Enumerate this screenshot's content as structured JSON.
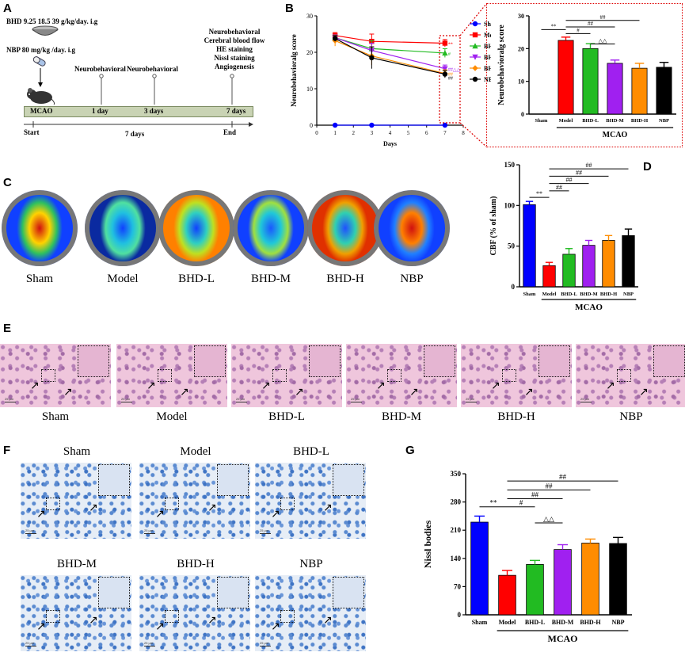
{
  "panels": {
    "a": "A",
    "b": "B",
    "c": "C",
    "d": "D",
    "e": "E",
    "f": "F",
    "g": "G"
  },
  "panel_a": {
    "dose_bhd": "BHD 9.25 18.5 39 g/kg/day. i.g",
    "dose_nbp": "NBP 80 mg/kg /day. i.g",
    "mcao": "MCAO",
    "ticks": [
      "1 day",
      "3 days",
      "7 days"
    ],
    "start": "Start",
    "end": "End",
    "duration": "7 days",
    "above_day1": "Neurobehavioral",
    "above_day3": "Neurobehavioral",
    "above_day7": [
      "Neurobehavioral",
      "Cerebral blood flow",
      "HE staining",
      "Nissl staining",
      "Angiogenesis"
    ]
  },
  "colors": {
    "sham": "#0000ff",
    "model": "#ff0000",
    "bhd_l": "#22bb22",
    "bhd_m": "#a020f0",
    "bhd_h": "#ff8c00",
    "nbp": "#000000",
    "annot": "#dd0000"
  },
  "groups": [
    "Sham",
    "Model",
    "BHD-L",
    "BHD-M",
    "BHD-H",
    "NBP"
  ],
  "mcao_label": "MCAO",
  "panel_c_labels": [
    "Sham",
    "Model",
    "BHD-L",
    "BHD-M",
    "BHD-H",
    "NBP"
  ],
  "panel_e_labels": [
    "Sham",
    "Model",
    "BHD-L",
    "BHD-M",
    "BHD-H",
    "NBP"
  ],
  "panel_f_labels": [
    "Sham",
    "Model",
    "BHD-L",
    "BHD-M",
    "BHD-H",
    "NBP"
  ],
  "scale_text": "25 μm",
  "chart_data": [
    {
      "id": "B-line",
      "type": "line",
      "xlabel": "Days",
      "ylabel": "Neurobehavioralg score",
      "xlim": [
        0,
        8
      ],
      "ylim": [
        0,
        30
      ],
      "xticks": [
        0,
        1,
        2,
        3,
        4,
        5,
        6,
        7,
        8
      ],
      "yticks": [
        0,
        10,
        20,
        30
      ],
      "x": [
        1,
        3,
        7
      ],
      "series": [
        {
          "name": "Sham",
          "values": [
            0,
            0,
            0
          ],
          "err": [
            0,
            0,
            0
          ],
          "marker": "circle",
          "color": "#0000ff"
        },
        {
          "name": "Model",
          "values": [
            24.6,
            23.0,
            22.5
          ],
          "err": [
            0.8,
            2.0,
            1.0
          ],
          "marker": "square",
          "color": "#ff0000"
        },
        {
          "name": "BHD-L",
          "values": [
            24.0,
            21.0,
            19.8
          ],
          "err": [
            0.8,
            2.2,
            1.2
          ],
          "marker": "triangle",
          "color": "#22bb22"
        },
        {
          "name": "BHD-M",
          "values": [
            24.0,
            20.5,
            15.5
          ],
          "err": [
            0.8,
            2.0,
            1.0
          ],
          "marker": "triangle-down",
          "color": "#a020f0"
        },
        {
          "name": "BHD-H",
          "values": [
            23.2,
            19.0,
            14.2
          ],
          "err": [
            1.5,
            2.5,
            1.0
          ],
          "marker": "diamond",
          "color": "#ff8c00"
        },
        {
          "name": "NBP",
          "values": [
            23.8,
            18.5,
            14.0
          ],
          "err": [
            0.8,
            3.0,
            1.0
          ],
          "marker": "circle",
          "color": "#000000"
        }
      ],
      "annotations": [
        "**",
        "#",
        "##△△",
        "##",
        "##"
      ]
    },
    {
      "id": "B-bar",
      "type": "bar",
      "ylabel": "Neurobehavioralg score",
      "ylim": [
        0,
        30
      ],
      "yticks": [
        0,
        10,
        20,
        30
      ],
      "categories": [
        "Sham",
        "Model",
        "BHD-L",
        "BHD-M",
        "BHD-H",
        "NBP"
      ],
      "values": [
        0,
        22.5,
        20.0,
        15.5,
        14.0,
        14.3
      ],
      "err": [
        0,
        1.0,
        1.5,
        1.0,
        1.5,
        1.5
      ],
      "sig": [
        "**",
        "#",
        "##",
        "##",
        "△△"
      ]
    },
    {
      "id": "D",
      "type": "bar",
      "ylabel": "CBF (% of sham)",
      "ylim": [
        0,
        150
      ],
      "yticks": [
        0,
        50,
        100,
        150
      ],
      "categories": [
        "Sham",
        "Model",
        "BHD-L",
        "BHD-M",
        "BHD-H",
        "NBP"
      ],
      "values": [
        101,
        26,
        40,
        51,
        57,
        63
      ],
      "err": [
        4,
        4,
        7,
        6,
        6,
        8
      ],
      "sig": [
        "**",
        "##",
        "##",
        "##",
        "##"
      ]
    },
    {
      "id": "G",
      "type": "bar",
      "ylabel": "Nissl bodies",
      "ylim": [
        0,
        350
      ],
      "yticks": [
        0,
        70,
        140,
        210,
        280,
        350
      ],
      "categories": [
        "Sham",
        "Model",
        "BHD-L",
        "BHD-M",
        "BHD-H",
        "NBP"
      ],
      "values": [
        230,
        98,
        125,
        162,
        178,
        177
      ],
      "err": [
        15,
        12,
        10,
        12,
        10,
        15
      ],
      "sig": [
        "**",
        "#",
        "△△",
        "##",
        "##",
        "##"
      ]
    }
  ]
}
